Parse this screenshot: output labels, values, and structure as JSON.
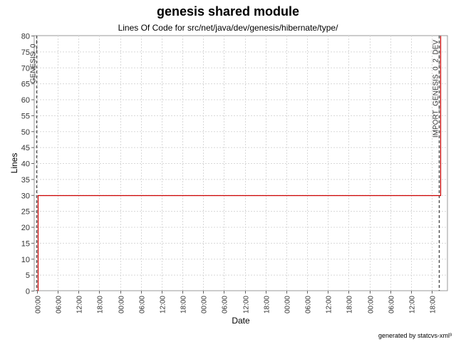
{
  "title": "genesis shared module",
  "subtitle": "Lines Of Code for src/net/java/dev/genesis/hibernate/type/",
  "footer": "generated by statcvs-xml³",
  "chart_data": {
    "type": "line",
    "title": "genesis shared module",
    "subtitle": "Lines Of Code for src/net/java/dev/genesis/hibernate/type/",
    "xlabel": "Date",
    "ylabel": "Lines",
    "ylim": [
      0,
      80
    ],
    "xlim": [
      0,
      114
    ],
    "yticks": [
      0,
      5,
      10,
      15,
      20,
      25,
      30,
      35,
      40,
      45,
      50,
      55,
      60,
      65,
      70,
      75,
      80
    ],
    "xtick_labels": [
      "00:00",
      "06:00",
      "12:00",
      "18:00",
      "00:00",
      "06:00",
      "12:00",
      "18:00",
      "00:00",
      "06:00",
      "12:00",
      "18:00",
      "00:00",
      "06:00",
      "12:00",
      "18:00",
      "00:00",
      "06:00",
      "12:00",
      "18:00"
    ],
    "xtick_hours": [
      0,
      6,
      12,
      18,
      24,
      30,
      36,
      42,
      48,
      54,
      60,
      66,
      72,
      78,
      84,
      90,
      96,
      102,
      108,
      114
    ],
    "grid": true,
    "line_color": "#cc0000",
    "series": [
      {
        "x": [
          0.3,
          0.3,
          116.5,
          116.5
        ],
        "y": [
          0,
          30,
          30,
          80
        ],
        "step": true
      }
    ],
    "markers": [
      {
        "label": "GENESIS_0_",
        "x": 0.3
      },
      {
        "label": "IMPORT_GENESIS_0_2_DEV",
        "x": 116.5
      }
    ]
  }
}
